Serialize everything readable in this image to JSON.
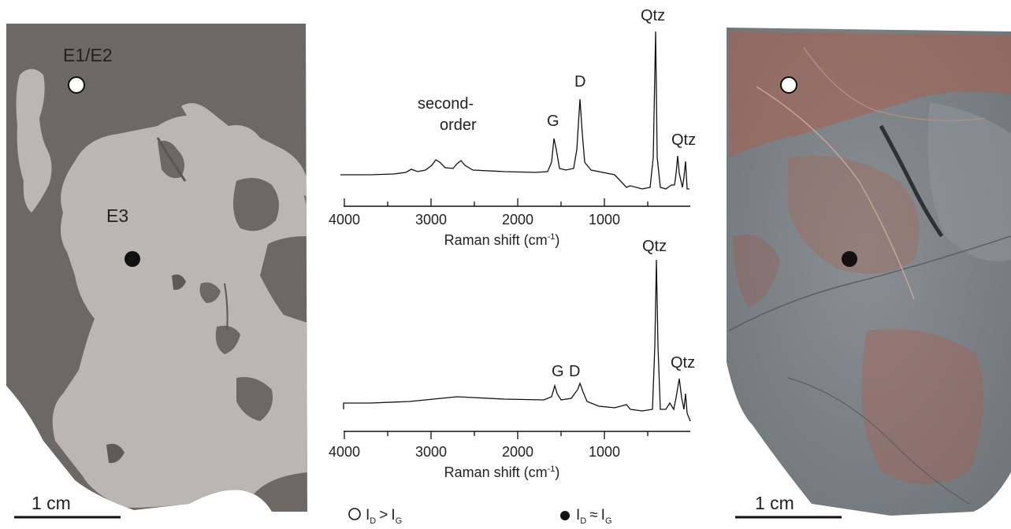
{
  "left_panel": {
    "label_top": "E1/E2",
    "label_mid": "E3",
    "scalebar": "1 cm"
  },
  "right_panel": {
    "scalebar": "1 cm"
  },
  "spectra": {
    "top": {
      "label_second_order": "second-",
      "label_second_order_2": "order",
      "label_g": "G",
      "label_d": "D",
      "label_qtz_main": "Qtz",
      "label_qtz_small": "Qtz"
    },
    "bottom": {
      "label_g": "G",
      "label_d": "D",
      "label_qtz_main": "Qtz",
      "label_qtz_small": "Qtz"
    },
    "axis": {
      "ticks": [
        "4000",
        "3000",
        "2000",
        "1000"
      ],
      "title_main": "Raman shift (cm",
      "title_sup": "-1",
      "title_end": ")"
    }
  },
  "legend": {
    "open": {
      "i_d": "I",
      "sub_d": "D",
      "op": ">",
      "i_g": "I",
      "sub_g": "G"
    },
    "filled": {
      "i_d": "I",
      "sub_d": "D",
      "op": "≈",
      "i_g": "I",
      "sub_g": "G"
    }
  },
  "colors": {
    "matrix_dark": "#6b6866",
    "region_light": "#b9b6b3",
    "rock_base": "#7f8589",
    "rock_red": "#a9604f"
  }
}
